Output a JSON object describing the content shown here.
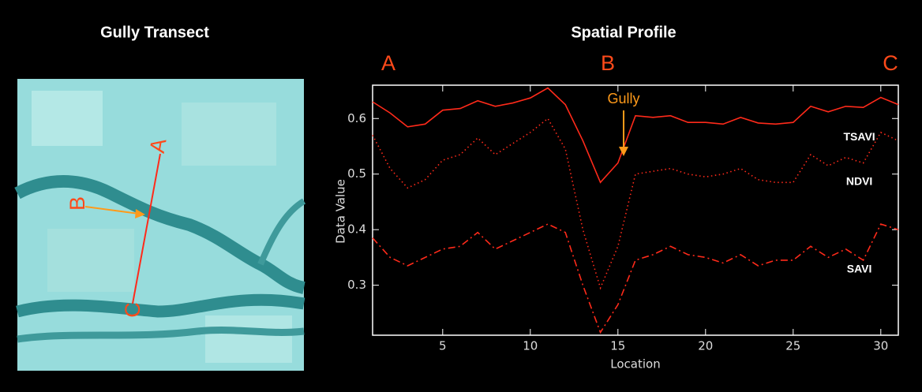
{
  "transect": {
    "title": "Gully Transect",
    "labels": [
      "A",
      "B",
      "C"
    ]
  },
  "chart_data": {
    "type": "line",
    "title": "Spatial Profile",
    "xlabel": "Location",
    "ylabel": "Data Value",
    "point_labels": [
      "A",
      "B",
      "C"
    ],
    "annotation": "Gully",
    "x": [
      1,
      2,
      3,
      4,
      5,
      6,
      7,
      8,
      9,
      10,
      11,
      12,
      13,
      14,
      15,
      16,
      17,
      18,
      19,
      20,
      21,
      22,
      23,
      24,
      25,
      26,
      27,
      28,
      29,
      30,
      31
    ],
    "series": [
      {
        "name": "TSAVI",
        "color": "#ff2a1a",
        "style": "solid",
        "values": [
          0.63,
          0.61,
          0.585,
          0.59,
          0.615,
          0.618,
          0.632,
          0.622,
          0.628,
          0.637,
          0.655,
          0.625,
          0.56,
          0.485,
          0.52,
          0.605,
          0.602,
          0.605,
          0.593,
          0.593,
          0.59,
          0.602,
          0.592,
          0.59,
          0.593,
          0.622,
          0.612,
          0.622,
          0.62,
          0.638,
          0.625
        ]
      },
      {
        "name": "NDVI",
        "color": "#ff2a1a",
        "style": "dotted",
        "values": [
          0.57,
          0.51,
          0.475,
          0.49,
          0.525,
          0.535,
          0.565,
          0.535,
          0.555,
          0.575,
          0.6,
          0.545,
          0.4,
          0.295,
          0.37,
          0.5,
          0.505,
          0.51,
          0.5,
          0.495,
          0.5,
          0.51,
          0.49,
          0.485,
          0.485,
          0.535,
          0.515,
          0.53,
          0.52,
          0.575,
          0.56
        ]
      },
      {
        "name": "SAVI",
        "color": "#ff2a1a",
        "style": "dashdot",
        "values": [
          0.385,
          0.35,
          0.335,
          0.35,
          0.365,
          0.37,
          0.395,
          0.365,
          0.38,
          0.395,
          0.41,
          0.395,
          0.3,
          0.215,
          0.265,
          0.345,
          0.355,
          0.37,
          0.355,
          0.35,
          0.34,
          0.355,
          0.335,
          0.345,
          0.345,
          0.37,
          0.35,
          0.365,
          0.345,
          0.41,
          0.4
        ]
      }
    ],
    "xlim": [
      1,
      31
    ],
    "xticks": [
      5,
      10,
      15,
      20,
      25,
      30
    ],
    "ylim": [
      0.21,
      0.66
    ],
    "yticks": [
      0.3,
      0.4,
      0.5,
      0.6
    ]
  }
}
